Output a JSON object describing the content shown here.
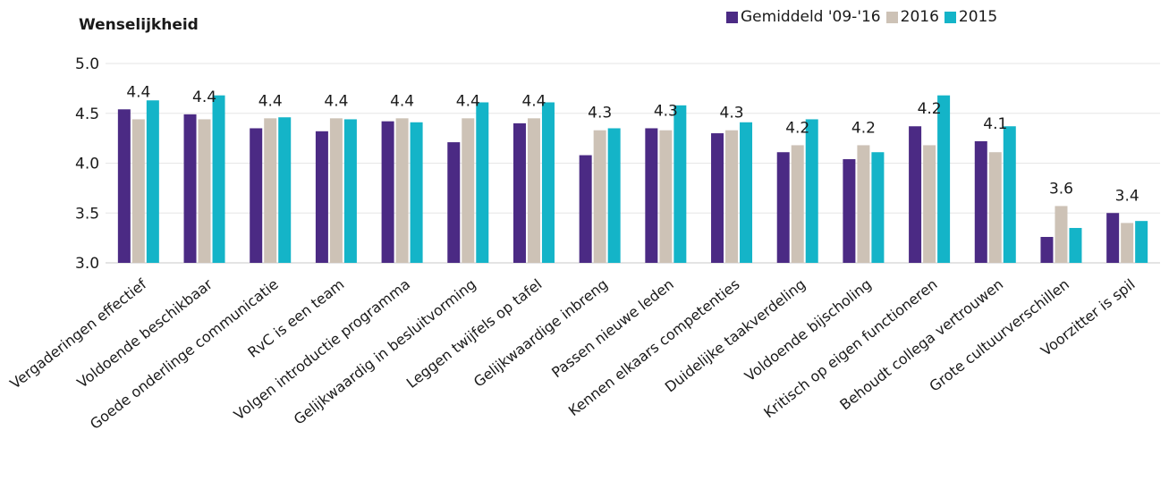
{
  "chart_data": {
    "type": "bar",
    "title": "Wenselijkheid",
    "ylim": [
      3.0,
      5.0
    ],
    "yticks": [
      "3.0",
      "3.5",
      "4.0",
      "4.5",
      "5.0"
    ],
    "grid": true,
    "legend_position": "top-right",
    "categories": [
      "Vergaderingen effectief",
      "Voldoende beschikbaar",
      "Goede onderlinge communicatie",
      "RvC is een team",
      "Volgen  introductie programma",
      "Gelijkwaardig in besluitvorming",
      "Leggen twijfels op tafel",
      "Gelijkwaardige inbreng",
      "Passen nieuwe leden",
      "Kennen elkaars competenties",
      "Duidelijke taakverdeling",
      "Voldoende bijscholing",
      "Kritisch op eigen functioneren",
      "Behoudt collega vertrouwen",
      "Grote cultuurverschillen",
      "Voorzitter is spil"
    ],
    "series": [
      {
        "name": "Gemiddeld '09-'16",
        "color": "#4b2a84",
        "values": [
          4.54,
          4.49,
          4.35,
          4.32,
          4.42,
          4.21,
          4.4,
          4.08,
          4.35,
          4.3,
          4.11,
          4.04,
          4.37,
          4.22,
          3.26,
          3.5
        ]
      },
      {
        "name": "2016",
        "color": "#cdc2b6",
        "values": [
          4.44,
          4.44,
          4.45,
          4.45,
          4.45,
          4.45,
          4.45,
          4.33,
          4.33,
          4.33,
          4.18,
          4.18,
          4.18,
          4.11,
          3.57,
          3.4
        ]
      },
      {
        "name": "2015",
        "color": "#14b4c8",
        "values": [
          4.63,
          4.68,
          4.46,
          4.44,
          4.41,
          4.61,
          4.61,
          4.35,
          4.58,
          4.41,
          4.44,
          4.11,
          4.68,
          4.37,
          3.35,
          3.42
        ]
      }
    ],
    "data_labels": [
      "4.4",
      "4.4",
      "4.4",
      "4.4",
      "4.4",
      "4.4",
      "4.4",
      "4.3",
      "4.3",
      "4.3",
      "4.2",
      "4.2",
      "4.2",
      "4.1",
      "3.6",
      "3.4"
    ]
  }
}
